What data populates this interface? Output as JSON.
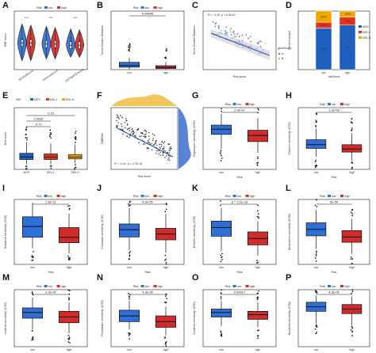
{
  "legend": {
    "title": "Risk",
    "low": "low",
    "high": "high"
  },
  "colors": {
    "low": "#2f6fd6",
    "high": "#d12c2c",
    "msi": "#1f5fbf",
    "msil": "#e4321a",
    "msih": "#f0a800",
    "scatter": "#3b6fd0",
    "density": "#f2c049"
  },
  "panels": {
    "A": {
      "label": "A",
      "ylabel": "TME score",
      "categories": [
        "StromalScore",
        "ImmuneScore",
        "ESTIMATEScore"
      ],
      "stars": [
        "***",
        "***",
        "***"
      ]
    },
    "B": {
      "label": "B",
      "ylabel": "Tumor Burden Mutation",
      "p": "0.00648",
      "xticks": [
        "low",
        "high"
      ]
    },
    "C": {
      "label": "C",
      "ylabel": "Tumor Burden Mutation",
      "xlabel": "Risk score",
      "stat": "R = -0.25, p = 6.3e-07",
      "legend_title": "geneScore",
      "legend_items": [
        "A",
        "B"
      ]
    },
    "D": {
      "label": "D",
      "ylabel": "Percent weight",
      "xlabel": "riskScore",
      "xticks": [
        "low",
        "high"
      ],
      "legend_items": [
        "MSS",
        "MSI-L",
        "MSI-H"
      ],
      "low_pct": [
        "71%",
        "10%",
        "19%"
      ],
      "high_pct": [
        "76%",
        "14%",
        "10%"
      ]
    },
    "E": {
      "label": "E",
      "legend_title": "MSI",
      "legend_items": [
        "MSS",
        "MSI-L",
        "MSI-H"
      ],
      "ylabel": "Risk score",
      "p_values": [
        "0.15",
        "0.0087",
        "0.71"
      ]
    },
    "F": {
      "label": "F",
      "stat": "R = -0.41, p < 2.2e-16",
      "xlabel": "Risk score",
      "ylabel": "TMBfilter"
    },
    "G": {
      "label": "G",
      "ylabel": "Rapamycin sensitivity (IC50)",
      "p": "2.9e-07",
      "xlabel": "Risk"
    },
    "H": {
      "label": "H",
      "ylabel": "Shikonin sensitivity (IC50)",
      "p": "1.3e-06",
      "xlabel": "Risk"
    },
    "I": {
      "label": "I",
      "ylabel": "Dasatinib sensitivity (IC50)",
      "p": "2.6e-11",
      "xlabel": "Risk"
    },
    "J": {
      "label": "J",
      "ylabel": "Docetaxel sensitivity (IC50)",
      "p": "4.9e-05",
      "xlabel": "Risk"
    },
    "K": {
      "label": "K",
      "ylabel": "Embelin sensitivity (IC50)",
      "p": "p = 2.2e-16",
      "xlabel": "Risk"
    },
    "L": {
      "label": "L",
      "ylabel": "Bexarotene sensitivity (IC50)",
      "p": "5e-09",
      "xlabel": "Risk"
    },
    "M": {
      "label": "M",
      "ylabel": "Imatinib sensitivity (IC50)",
      "p": "2.3e-07",
      "xlabel": "Risk"
    },
    "N": {
      "label": "N",
      "ylabel": "Pentostatin sensitivity (IC50)",
      "p": "4.3e-06",
      "xlabel": "Risk"
    },
    "O": {
      "label": "O",
      "ylabel": "Sunitinib sensitivity (IC50)",
      "p": "0.00017",
      "xlabel": "Risk"
    },
    "P": {
      "label": "P",
      "ylabel": "Bosutinib sensitivity (IC50)",
      "p": "4.3e-05",
      "xlabel": "Risk"
    }
  },
  "chart_data": [
    {
      "panel": "B",
      "type": "box",
      "categories": [
        "low",
        "high"
      ],
      "box_stats": [
        [
          0.5,
          2.5,
          4.2,
          7.5,
          12.5
        ],
        [
          0.3,
          1.2,
          2.2,
          4.0,
          7.8
        ]
      ],
      "ylim": [
        0,
        60
      ]
    },
    {
      "panel": "D",
      "type": "bar",
      "categories": [
        "low",
        "high"
      ],
      "series": [
        {
          "name": "MSS",
          "values": [
            71,
            76
          ]
        },
        {
          "name": "MSI-L",
          "values": [
            10,
            14
          ]
        },
        {
          "name": "MSI-H",
          "values": [
            19,
            10
          ]
        }
      ],
      "ylim": [
        0,
        100
      ]
    },
    {
      "panel": "E",
      "type": "box",
      "categories": [
        "MSS",
        "MSI-L",
        "MSI-H"
      ],
      "box_stats": [
        [
          0.4,
          0.8,
          1.0,
          1.3,
          2.2
        ],
        [
          0.4,
          0.8,
          1.0,
          1.25,
          2.1
        ],
        [
          0.5,
          0.85,
          1.0,
          1.2,
          2.0
        ]
      ],
      "ylim": [
        0,
        5
      ]
    },
    {
      "panel": "G",
      "type": "box",
      "categories": [
        "low",
        "high"
      ],
      "box_stats": [
        [
          -4.0,
          -2.6,
          -2.1,
          -1.7,
          -0.6
        ],
        [
          -4.4,
          -3.3,
          -2.7,
          -2.2,
          -1.0
        ]
      ],
      "ylim": [
        -6,
        0
      ]
    },
    {
      "panel": "H",
      "type": "box",
      "categories": [
        "low",
        "high"
      ],
      "box_stats": [
        [
          -1.0,
          -0.3,
          0.0,
          0.4,
          1.3
        ],
        [
          -1.3,
          -0.6,
          -0.35,
          0.0,
          0.9
        ]
      ],
      "ylim": [
        -2,
        3
      ]
    },
    {
      "panel": "I",
      "type": "box",
      "categories": [
        "low",
        "high"
      ],
      "box_stats": [
        [
          -2.5,
          -1.5,
          -0.5,
          0.4,
          1.7
        ],
        [
          -3.0,
          -2.0,
          -1.5,
          -0.6,
          0.7
        ]
      ],
      "ylim": [
        -4,
        2
      ]
    },
    {
      "panel": "J",
      "type": "box",
      "categories": [
        "low",
        "high"
      ],
      "box_stats": [
        [
          -2.5,
          -1.6,
          -1.1,
          -0.7,
          0.4
        ],
        [
          -2.7,
          -1.8,
          -1.4,
          -1.0,
          0.0
        ]
      ],
      "ylim": [
        -3.5,
        1
      ]
    },
    {
      "panel": "K",
      "type": "box",
      "categories": [
        "low",
        "high"
      ],
      "box_stats": [
        [
          2.3,
          2.65,
          2.85,
          3.0,
          3.3
        ],
        [
          2.2,
          2.45,
          2.6,
          2.75,
          3.0
        ]
      ],
      "ylim": [
        2.0,
        3.5
      ]
    },
    {
      "panel": "L",
      "type": "box",
      "categories": [
        "low",
        "high"
      ],
      "box_stats": [
        [
          -0.8,
          0.2,
          0.7,
          1.2,
          2.2
        ],
        [
          -1.2,
          -0.3,
          0.1,
          0.6,
          1.5
        ]
      ],
      "ylim": [
        -2,
        3
      ]
    },
    {
      "panel": "M",
      "type": "box",
      "categories": [
        "low",
        "high"
      ],
      "box_stats": [
        [
          -1.5,
          -0.5,
          0.0,
          0.4,
          1.3
        ],
        [
          -1.8,
          -0.9,
          -0.4,
          0.1,
          0.9
        ]
      ],
      "ylim": [
        -3,
        2
      ]
    },
    {
      "panel": "N",
      "type": "box",
      "categories": [
        "low",
        "high"
      ],
      "box_stats": [
        [
          -1.5,
          -0.8,
          -0.3,
          0.2,
          1.0
        ],
        [
          -2.0,
          -1.3,
          -0.8,
          -0.3,
          0.5
        ]
      ],
      "ylim": [
        -3,
        2
      ]
    },
    {
      "panel": "O",
      "type": "box",
      "categories": [
        "low",
        "high"
      ],
      "box_stats": [
        [
          -1.2,
          -0.4,
          0.0,
          0.3,
          1.0
        ],
        [
          -1.3,
          -0.6,
          -0.2,
          0.1,
          0.9
        ]
      ],
      "ylim": [
        -3,
        2
      ]
    },
    {
      "panel": "P",
      "type": "box",
      "categories": [
        "low",
        "high"
      ],
      "box_stats": [
        [
          -1.0,
          0.1,
          0.5,
          0.9,
          1.5
        ],
        [
          -1.1,
          -0.1,
          0.3,
          0.7,
          1.4
        ]
      ],
      "ylim": [
        -3,
        2
      ]
    }
  ]
}
